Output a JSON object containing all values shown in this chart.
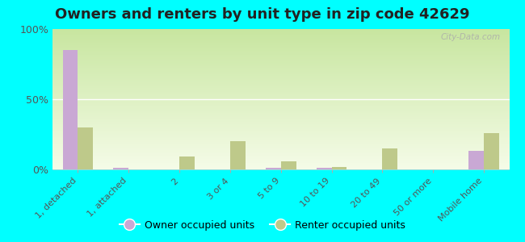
{
  "title": "Owners and renters by unit type in zip code 42629",
  "categories": [
    "1, detached",
    "1, attached",
    "2",
    "3 or 4",
    "5 to 9",
    "10 to 19",
    "20 to 49",
    "50 or more",
    "Mobile home"
  ],
  "owner_values": [
    85,
    1,
    0,
    0,
    1,
    1,
    0,
    0,
    13
  ],
  "renter_values": [
    30,
    0,
    9,
    20,
    6,
    2,
    15,
    0,
    26
  ],
  "owner_color": "#c9a8d4",
  "renter_color": "#bec98a",
  "background_color": "#00ffff",
  "plot_bg_color": "#eef7e0",
  "ylim": [
    0,
    100
  ],
  "yticks": [
    0,
    50,
    100
  ],
  "ytick_labels": [
    "0%",
    "50%",
    "100%"
  ],
  "legend_owner": "Owner occupied units",
  "legend_renter": "Renter occupied units",
  "title_fontsize": 13,
  "watermark": "City-Data.com"
}
